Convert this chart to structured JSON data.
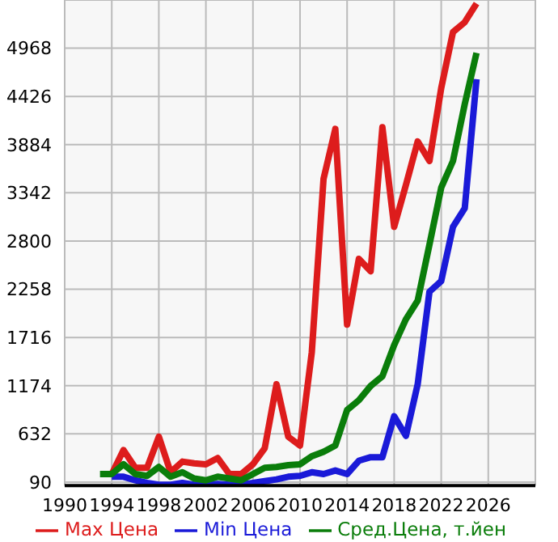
{
  "chart_data": {
    "type": "line",
    "x": [
      1993,
      1994,
      1995,
      1996,
      1997,
      1998,
      1999,
      2000,
      2001,
      2002,
      2003,
      2004,
      2005,
      2006,
      2007,
      2008,
      2009,
      2010,
      2011,
      2012,
      2013,
      2014,
      2015,
      2016,
      2017,
      2018,
      2019,
      2020,
      2021,
      2022,
      2023,
      2024,
      2025
    ],
    "series": [
      {
        "name": "Max Цена",
        "color": "#dd1c1c",
        "values": [
          null,
          180,
          450,
          250,
          250,
          600,
          200,
          320,
          300,
          290,
          360,
          180,
          180,
          290,
          470,
          1190,
          600,
          500,
          1550,
          3500,
          4060,
          1860,
          2600,
          2460,
          4080,
          2960,
          3430,
          3920,
          3700,
          4520,
          5150,
          5260,
          5470
        ]
      },
      {
        "name": "Min Цена",
        "color": "#1a1ad8",
        "values": [
          null,
          150,
          150,
          110,
          80,
          60,
          60,
          80,
          60,
          60,
          70,
          60,
          60,
          80,
          100,
          120,
          150,
          160,
          200,
          180,
          220,
          180,
          330,
          370,
          370,
          830,
          610,
          1190,
          2230,
          2350,
          2960,
          3170,
          4620
        ]
      },
      {
        "name": "Сред.Цена, т.йен",
        "color": "#0a7d0a",
        "values": [
          180,
          180,
          290,
          180,
          160,
          260,
          150,
          200,
          130,
          110,
          150,
          130,
          110,
          180,
          250,
          260,
          280,
          290,
          380,
          430,
          500,
          900,
          1010,
          1170,
          1280,
          1630,
          1920,
          2130,
          2760,
          3400,
          3700,
          4340,
          4915
        ]
      }
    ],
    "xlim": [
      1990,
      2030
    ],
    "xticks": [
      1990,
      1994,
      1998,
      2002,
      2006,
      2010,
      2014,
      2018,
      2022,
      2026
    ],
    "ylim": [
      50,
      5510
    ],
    "yticks": [
      90,
      632,
      1174,
      1716,
      2258,
      2800,
      3342,
      3884,
      4426,
      4968
    ],
    "grid": true,
    "legend": "bottom",
    "marker": "none",
    "line_style": "solid"
  }
}
